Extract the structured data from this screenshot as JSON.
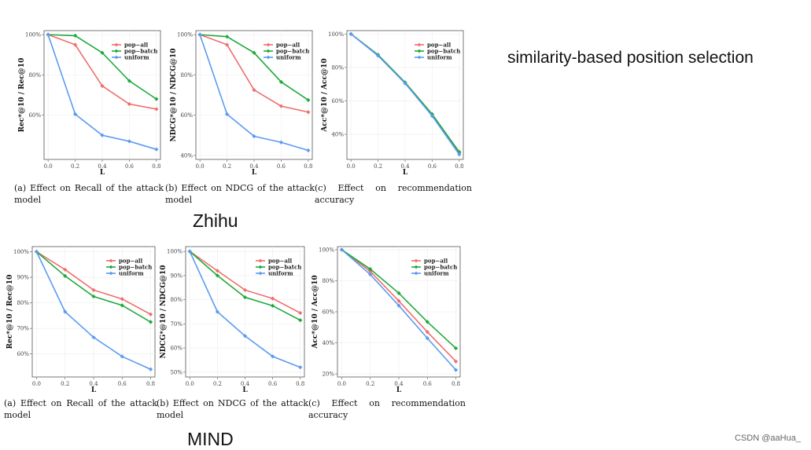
{
  "side_title": "similarity-based position selection",
  "watermark": "CSDN @aaHua_",
  "datasets": [
    {
      "name": "Zhihu",
      "captions": [
        "(a) Effect on Recall of the attack model",
        "(b) Effect on NDCG of the attack model",
        "(c) Effect on recommendation accuracy"
      ]
    },
    {
      "name": "MIND",
      "captions": [
        "(a) Effect on Recall of the attack model",
        "(b) Effect on NDCG of the attack model",
        "(c) Effect on recommendation accuracy"
      ]
    }
  ],
  "colors": {
    "pop-all": "#ef6f6c",
    "pop-batch": "#1faa3c",
    "uniform": "#5b9bf0"
  },
  "chart_data": [
    {
      "type": "line",
      "dataset": "Zhihu",
      "xlabel": "L",
      "ylabel": "Rec*@10 / Rec@10",
      "x": [
        0.0,
        0.2,
        0.4,
        0.6,
        0.8
      ],
      "xticks": [
        "0.0",
        "0.2",
        "0.4",
        "0.6",
        "0.8"
      ],
      "ylim": [
        40,
        100
      ],
      "yticks": [
        60,
        80,
        100
      ],
      "ytick_labels": [
        "60%",
        "80%",
        "100%"
      ],
      "legend": "upper-right",
      "grid": true,
      "series": [
        {
          "name": "pop−all",
          "values": [
            100,
            95,
            74.5,
            65.5,
            63
          ]
        },
        {
          "name": "pop−batch",
          "values": [
            100,
            99.5,
            91,
            77,
            68
          ]
        },
        {
          "name": "uniform",
          "values": [
            100,
            60.5,
            50,
            47,
            43
          ]
        }
      ]
    },
    {
      "type": "line",
      "dataset": "Zhihu",
      "xlabel": "L",
      "ylabel": "NDCG*@10 / NDCG@10",
      "x": [
        0.0,
        0.2,
        0.4,
        0.6,
        0.8
      ],
      "xticks": [
        "0.0",
        "0.2",
        "0.4",
        "0.6",
        "0.8"
      ],
      "ylim": [
        40,
        100
      ],
      "yticks": [
        40,
        60,
        80,
        100
      ],
      "ytick_labels": [
        "40%",
        "60%",
        "80%",
        "100%"
      ],
      "legend": "upper-right",
      "grid": true,
      "series": [
        {
          "name": "pop−all",
          "values": [
            100,
            95,
            72.5,
            64.5,
            61.5
          ]
        },
        {
          "name": "pop−batch",
          "values": [
            100,
            99,
            91,
            76.5,
            67.5
          ]
        },
        {
          "name": "uniform",
          "values": [
            100,
            60.5,
            49.5,
            46.5,
            42.5
          ]
        }
      ]
    },
    {
      "type": "line",
      "dataset": "Zhihu",
      "xlabel": "L",
      "ylabel": "Acc*@10 / Acc@10",
      "x": [
        0.0,
        0.2,
        0.4,
        0.6,
        0.8
      ],
      "xticks": [
        "0.0",
        "0.2",
        "0.4",
        "0.6",
        "0.8"
      ],
      "ylim": [
        27,
        100
      ],
      "yticks": [
        40,
        60,
        80,
        100
      ],
      "ytick_labels": [
        "40%",
        "60%",
        "80%",
        "100%"
      ],
      "legend": "upper-right",
      "grid": true,
      "series": [
        {
          "name": "pop−all",
          "values": [
            100,
            87.5,
            71,
            52,
            29
          ]
        },
        {
          "name": "pop−batch",
          "values": [
            100,
            87.5,
            71,
            52,
            29.5
          ]
        },
        {
          "name": "uniform",
          "values": [
            100,
            87,
            70.5,
            51,
            28
          ]
        }
      ]
    },
    {
      "type": "line",
      "dataset": "MIND",
      "xlabel": "L",
      "ylabel": "Rec*@10 / Rec@10",
      "x": [
        0.0,
        0.2,
        0.4,
        0.6,
        0.8
      ],
      "xticks": [
        "0.0",
        "0.2",
        "0.4",
        "0.6",
        "0.8"
      ],
      "ylim": [
        53,
        100
      ],
      "yticks": [
        60,
        70,
        80,
        90,
        100
      ],
      "ytick_labels": [
        "60%",
        "70%",
        "80%",
        "90%",
        "100%"
      ],
      "legend": "upper-right",
      "grid": true,
      "series": [
        {
          "name": "pop−all",
          "values": [
            100,
            93,
            85,
            81.5,
            75.5
          ]
        },
        {
          "name": "pop−batch",
          "values": [
            100,
            90.5,
            82.5,
            79,
            72.5
          ]
        },
        {
          "name": "uniform",
          "values": [
            100,
            76.5,
            66.5,
            59,
            54
          ]
        }
      ]
    },
    {
      "type": "line",
      "dataset": "MIND",
      "xlabel": "L",
      "ylabel": "NDCG*@10 / NDCG@10",
      "x": [
        0.0,
        0.2,
        0.4,
        0.6,
        0.8
      ],
      "xticks": [
        "0.0",
        "0.2",
        "0.4",
        "0.6",
        "0.8"
      ],
      "ylim": [
        50,
        100
      ],
      "yticks": [
        50,
        60,
        70,
        80,
        90,
        100
      ],
      "ytick_labels": [
        "50%",
        "60%",
        "70%",
        "80%",
        "90%",
        "100%"
      ],
      "legend": "upper-right",
      "grid": true,
      "series": [
        {
          "name": "pop−all",
          "values": [
            100,
            92,
            84,
            80.5,
            74.5
          ]
        },
        {
          "name": "pop−batch",
          "values": [
            100,
            90,
            81,
            77.5,
            71.5
          ]
        },
        {
          "name": "uniform",
          "values": [
            100,
            75,
            65,
            56.5,
            52
          ]
        }
      ]
    },
    {
      "type": "line",
      "dataset": "MIND",
      "xlabel": "L",
      "ylabel": "Acc*@10 / Acc@10",
      "x": [
        0.0,
        0.2,
        0.4,
        0.6,
        0.8
      ],
      "xticks": [
        "0.0",
        "0.2",
        "0.4",
        "0.6",
        "0.8"
      ],
      "ylim": [
        20,
        100
      ],
      "yticks": [
        20,
        40,
        60,
        80,
        100
      ],
      "ytick_labels": [
        "20%",
        "40%",
        "60%",
        "80%",
        "100%"
      ],
      "legend": "upper-right",
      "grid": true,
      "series": [
        {
          "name": "pop−all",
          "values": [
            100,
            86,
            67,
            47,
            28
          ]
        },
        {
          "name": "pop−batch",
          "values": [
            100,
            87.5,
            72,
            53.5,
            36.5
          ]
        },
        {
          "name": "uniform",
          "values": [
            100,
            84,
            64,
            43,
            22.5
          ]
        }
      ]
    }
  ]
}
